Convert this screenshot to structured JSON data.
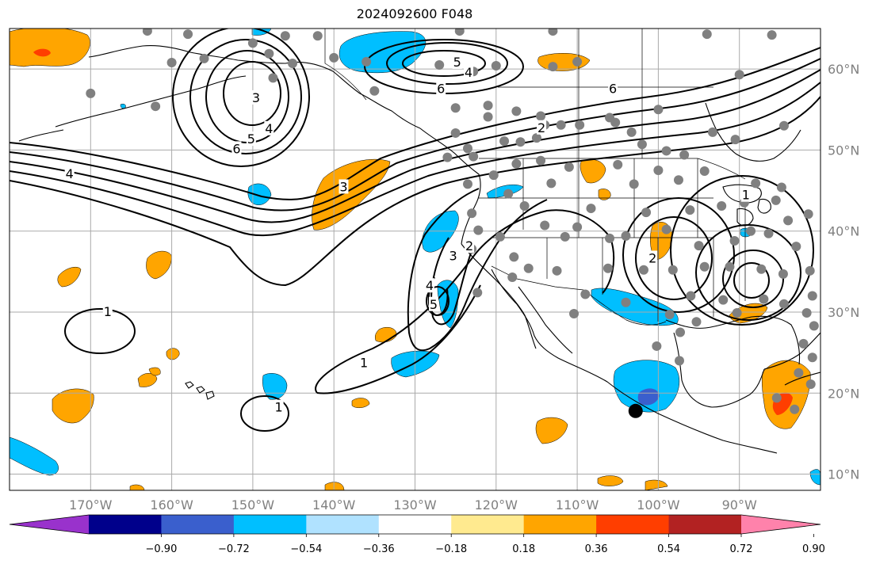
{
  "title": "2024092600 F048",
  "map": {
    "projection": "PlateCarree",
    "lon_range": [
      -180,
      -80
    ],
    "lat_range": [
      8,
      65
    ],
    "grid": true,
    "gridline_color": "#aaaaaa"
  },
  "lon_labels": [
    {
      "lon": -170,
      "text": "170°W"
    },
    {
      "lon": -160,
      "text": "160°W"
    },
    {
      "lon": -150,
      "text": "150°W"
    },
    {
      "lon": -140,
      "text": "140°W"
    },
    {
      "lon": -130,
      "text": "130°W"
    },
    {
      "lon": -120,
      "text": "120°W"
    },
    {
      "lon": -110,
      "text": "110°W"
    },
    {
      "lon": -100,
      "text": "100°W"
    },
    {
      "lon": -90,
      "text": "90°W"
    }
  ],
  "lat_labels": [
    {
      "lat": 60,
      "text": "60°N"
    },
    {
      "lat": 50,
      "text": "50°N"
    },
    {
      "lat": 40,
      "text": "40°N"
    },
    {
      "lat": 30,
      "text": "30°N"
    },
    {
      "lat": 20,
      "text": "20°N"
    },
    {
      "lat": 10,
      "text": "10°N"
    }
  ],
  "contour_labels": [
    {
      "text": "5",
      "lon": -124.8,
      "lat": 60.9
    },
    {
      "text": "4",
      "lon": -123.4,
      "lat": 59.6
    },
    {
      "text": "6",
      "lon": -126.8,
      "lat": 57.6
    },
    {
      "text": "3",
      "lon": -149.6,
      "lat": 56.5
    },
    {
      "text": "4",
      "lon": -148.0,
      "lat": 52.7
    },
    {
      "text": "5",
      "lon": -150.2,
      "lat": 51.4
    },
    {
      "text": "6",
      "lon": -152.0,
      "lat": 50.2
    },
    {
      "text": "4",
      "lon": -172.6,
      "lat": 47.1
    },
    {
      "text": "3",
      "lon": -138.8,
      "lat": 45.5
    },
    {
      "text": "6",
      "lon": -105.6,
      "lat": 57.6
    },
    {
      "text": "2",
      "lon": -114.4,
      "lat": 52.8
    },
    {
      "text": "3",
      "lon": -125.3,
      "lat": 37.0
    },
    {
      "text": "2",
      "lon": -123.3,
      "lat": 38.2
    },
    {
      "text": "4",
      "lon": -128.2,
      "lat": 33.3
    },
    {
      "text": "5",
      "lon": -127.7,
      "lat": 31.0
    },
    {
      "text": "2",
      "lon": -100.7,
      "lat": 36.7
    },
    {
      "text": "1",
      "lon": -89.2,
      "lat": 44.5
    },
    {
      "text": "1",
      "lon": -167.9,
      "lat": 30.1
    },
    {
      "text": "1",
      "lon": -136.3,
      "lat": 23.8
    },
    {
      "text": "1",
      "lon": -146.8,
      "lat": 18.3
    }
  ],
  "station_dots_latlon": [
    [
      -163,
      64.7
    ],
    [
      -158,
      64.3
    ],
    [
      -146,
      64.1
    ],
    [
      -142,
      64.1
    ],
    [
      -124.5,
      64.7
    ],
    [
      -113,
      64.7
    ],
    [
      -94,
      64.3
    ],
    [
      -86,
      64.2
    ],
    [
      -160,
      60.8
    ],
    [
      -156,
      61.3
    ],
    [
      -150,
      63.2
    ],
    [
      -148,
      61.9
    ],
    [
      -145.1,
      60.7
    ],
    [
      -140,
      61.4
    ],
    [
      -136,
      60.9
    ],
    [
      -127,
      60.5
    ],
    [
      -122.8,
      59.7
    ],
    [
      -113,
      60.3
    ],
    [
      -110,
      60.9
    ],
    [
      -90,
      59.3
    ],
    [
      -170,
      57.0
    ],
    [
      -162,
      55.4
    ],
    [
      -147.5,
      58.9
    ],
    [
      -135,
      57.3
    ],
    [
      -125,
      55.2
    ],
    [
      -121,
      54.1
    ],
    [
      -121,
      55.5
    ],
    [
      -117.5,
      54.8
    ],
    [
      -114.5,
      54.2
    ],
    [
      -114,
      53.1
    ],
    [
      -112,
      53.1
    ],
    [
      -109.7,
      53.1
    ],
    [
      -106,
      54.0
    ],
    [
      -100,
      55.0
    ],
    [
      -105.3,
      53.4
    ],
    [
      -103.3,
      52.2
    ],
    [
      -115,
      51.5
    ],
    [
      -125,
      52.1
    ],
    [
      -117,
      51.0
    ],
    [
      -119,
      51.1
    ],
    [
      -123.5,
      50.2
    ],
    [
      -102,
      50.7
    ],
    [
      -99,
      49.9
    ],
    [
      -96.8,
      49.4
    ],
    [
      -93.3,
      52.2
    ],
    [
      -90.5,
      51.3
    ],
    [
      -84.5,
      53.0
    ],
    [
      -126,
      49.1
    ],
    [
      -122.8,
      49.2
    ],
    [
      -117.5,
      48.3
    ],
    [
      -114.5,
      48.7
    ],
    [
      -111,
      47.9
    ],
    [
      -105,
      48.2
    ],
    [
      -100,
      47.5
    ],
    [
      -97.5,
      46.3
    ],
    [
      -94.3,
      47.4
    ],
    [
      -120.3,
      46.9
    ],
    [
      -123.5,
      45.8
    ],
    [
      -113.2,
      45.9
    ],
    [
      -103,
      45.8
    ],
    [
      -118.5,
      44.6
    ],
    [
      -88,
      45.9
    ],
    [
      -84.8,
      45.4
    ],
    [
      -123,
      42.2
    ],
    [
      -116.5,
      43.1
    ],
    [
      -108.3,
      42.8
    ],
    [
      -101.5,
      42.3
    ],
    [
      -96.1,
      42.6
    ],
    [
      -92.2,
      43.1
    ],
    [
      -89.4,
      43.5
    ],
    [
      -85.5,
      43.8
    ],
    [
      -122.2,
      40.1
    ],
    [
      -119.5,
      39.3
    ],
    [
      -114,
      40.7
    ],
    [
      -110,
      40.5
    ],
    [
      -104,
      39.4
    ],
    [
      -111.5,
      39.3
    ],
    [
      -106,
      39.1
    ],
    [
      -99,
      40.2
    ],
    [
      -95,
      38.2
    ],
    [
      -90.6,
      38.8
    ],
    [
      -88.6,
      40.0
    ],
    [
      -86.4,
      39.7
    ],
    [
      -81.5,
      42.1
    ],
    [
      -84,
      41.3
    ],
    [
      -83,
      38.1
    ],
    [
      -117.8,
      36.8
    ],
    [
      -123,
      37.8
    ],
    [
      -116,
      35.4
    ],
    [
      -112.5,
      35.1
    ],
    [
      -106.2,
      35.4
    ],
    [
      -101.8,
      35.2
    ],
    [
      -98.2,
      35.2
    ],
    [
      -94.3,
      35.6
    ],
    [
      -91.2,
      35.6
    ],
    [
      -87.3,
      35.3
    ],
    [
      -84.6,
      34.7
    ],
    [
      -81.3,
      35.1
    ],
    [
      -118,
      34.3
    ],
    [
      -122.3,
      32.4
    ],
    [
      -109,
      32.2
    ],
    [
      -104,
      31.2
    ],
    [
      -96,
      32.0
    ],
    [
      -92,
      31.5
    ],
    [
      -87,
      31.6
    ],
    [
      -84.5,
      31.0
    ],
    [
      -81,
      32.0
    ],
    [
      -110.4,
      29.8
    ],
    [
      -98.6,
      29.7
    ],
    [
      -90.3,
      29.9
    ],
    [
      -80.8,
      28.3
    ],
    [
      -97.3,
      27.5
    ],
    [
      -95.3,
      28.8
    ],
    [
      -100.2,
      25.8
    ],
    [
      -97.4,
      24.0
    ],
    [
      -82.1,
      26.1
    ],
    [
      -81.7,
      29.9
    ],
    [
      -81.0,
      24.4
    ],
    [
      -82.7,
      22.5
    ],
    [
      -81.2,
      21.1
    ],
    [
      -83.2,
      18.0
    ],
    [
      -85.4,
      19.4
    ],
    [
      -120,
      60.4
    ]
  ],
  "highlight_point": {
    "lon": -102.8,
    "lat": 17.8
  },
  "colorbar": {
    "ticks": [
      "−0.90",
      "−0.72",
      "−0.54",
      "−0.36",
      "−0.18",
      "0.18",
      "0.36",
      "0.54",
      "0.72",
      "0.90"
    ],
    "colors": [
      "#9932cc",
      "#00008b",
      "#3a5fcd",
      "#00bfff",
      "#b0e2ff",
      "#ffffff",
      "#ffea8f",
      "#ffa500",
      "#ff3e00",
      "#b22222",
      "#ff82ab"
    ],
    "extend": "both"
  }
}
